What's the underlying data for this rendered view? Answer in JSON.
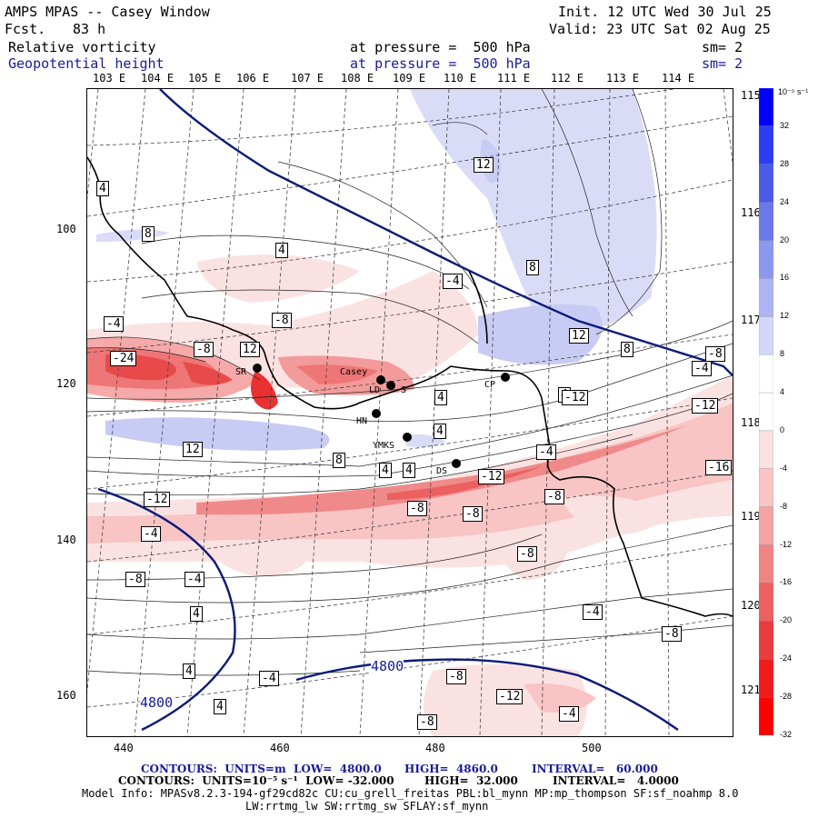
{
  "header": {
    "title": "AMPS MPAS -- Casey Window",
    "fcst_label": "Fcst.",
    "fcst_value": "83 h",
    "init": "Init. 12 UTC Wed 30 Jul 25",
    "valid": "Valid: 23 UTC Sat 02 Aug 25",
    "field1_name": "Relative vorticity",
    "field1_level": "at pressure =  500 hPa",
    "field1_sm": "sm= 2",
    "field2_name": "Geopotential height",
    "field2_level": "at pressure =  500 hPa",
    "field2_sm": "sm= 2"
  },
  "top_lon_labels": [
    "103 E",
    "104 E",
    "105 E",
    "106 E",
    "107 E",
    "108 E",
    "109 E",
    "110 E",
    "111 E",
    "112 E",
    "113 E",
    "114 E"
  ],
  "right_lon_labels": [
    "115 E",
    "116 E",
    "117 E",
    "118 E",
    "119 E",
    "120 E",
    "121 E"
  ],
  "x_ticks": [
    "440",
    "460",
    "480",
    "500"
  ],
  "y_ticks": [
    "100",
    "120",
    "140",
    "160"
  ],
  "stations": [
    "SR",
    "Casey",
    "LD",
    "S",
    "HN",
    "CP",
    "YMKS",
    "DS"
  ],
  "contour_labels": [
    "-24",
    "-8",
    "12",
    "-4",
    "-8",
    "4",
    "8",
    "4",
    "-4",
    "8",
    "12",
    "12",
    "8",
    "-8",
    "-12",
    "4",
    "4",
    "12",
    "8",
    "4",
    "4",
    "-4",
    "-12",
    "-8",
    "-16",
    "-8",
    "-8",
    "-12",
    "-4",
    "-8",
    "-8",
    "-4",
    "4",
    "-4",
    "4",
    "-4",
    "-8",
    "-12",
    "-8",
    "-4",
    "-4",
    "4",
    "4",
    "-12",
    "-8"
  ],
  "height_labels": [
    "4800",
    "4800"
  ],
  "colorbar": {
    "unit": "10⁻⁵ s⁻¹",
    "labels": [
      "32",
      "28",
      "24",
      "20",
      "16",
      "12",
      "8",
      "4",
      "0",
      "-4",
      "-8",
      "-12",
      "-16",
      "-20",
      "-24",
      "-28",
      "-32"
    ],
    "colors": [
      "#0000ff",
      "#2b3df3",
      "#4a5be8",
      "#6a79ea",
      "#8c97ef",
      "#aeb5f4",
      "#d2d6f9",
      "#ffffff",
      "#ffffff",
      "#fbe0e0",
      "#f8c4c4",
      "#f4a4a4",
      "#f08484",
      "#ec6060",
      "#ea3c3c",
      "#f01c1c",
      "#ff0000"
    ]
  },
  "footer": {
    "line1_a": "CONTOURS:  UNITS=m  LOW=  4800.0",
    "line1_b": "HIGH=  4860.0",
    "line1_c": "INTERVAL=   60.000",
    "line2_a": "CONTOURS:  UNITS=10⁻⁵ s⁻¹  LOW= -32.000",
    "line2_b": "HIGH=  32.000",
    "line2_c": "INTERVAL=   4.0000",
    "line3": "Model Info: MPASv8.2.3-194-gf29cd82c CU:cu_grell_freitas PBL:bl_mynn MP:mp_thompson SF:sf_noahmp 8.0",
    "line4": "LW:rrtmg_lw SW:rrtmg_sw SFLAY:sf_mynn"
  }
}
